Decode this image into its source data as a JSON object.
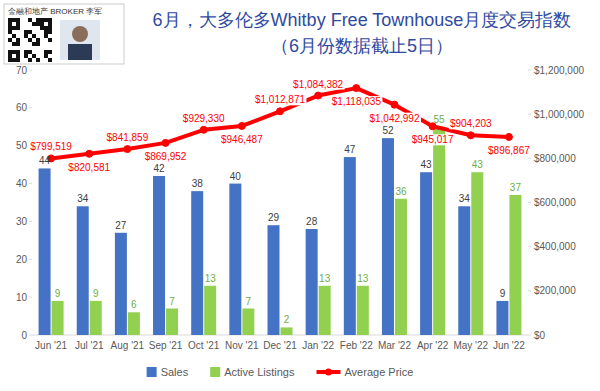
{
  "chart_data": {
    "type": "bar",
    "title": "6月，大多伦多Whitby Free Townhouse月度交易指数",
    "subtitle": "（6月份数据截止5日）",
    "annotations": [
      "金融和地产 BROKER 李军"
    ],
    "categories": [
      "Jun '21",
      "Jul '21",
      "Aug '21",
      "Sep '21",
      "Oct '21",
      "Nov '21",
      "Dec '21",
      "Jan '22",
      "Feb '22",
      "Mar '22",
      "Apr '22",
      "May '22",
      "Jun '22"
    ],
    "series": [
      {
        "name": "Sales",
        "type": "bar",
        "color": "#4472c4",
        "values": [
          44,
          34,
          27,
          42,
          38,
          40,
          29,
          28,
          47,
          52,
          43,
          34,
          9
        ]
      },
      {
        "name": "Active Listings",
        "type": "bar",
        "color": "#92d050",
        "values": [
          9,
          9,
          6,
          7,
          13,
          7,
          2,
          13,
          13,
          36,
          55,
          43,
          37
        ]
      },
      {
        "name": "Average Price",
        "type": "line",
        "color": "#ff0000",
        "axis": "y2",
        "marker": "circle",
        "values": [
          799519,
          820581,
          841859,
          869952,
          929330,
          946487,
          1012871,
          1084382,
          1118035,
          1042992,
          945017,
          904203,
          896867
        ],
        "value_labels": [
          "$799,519",
          "$820,581",
          "$841,859",
          "$869,952",
          "$929,330",
          "$946,487",
          "$1,012,871",
          "$1,084,382",
          "$1,118,035",
          "$1,042,992",
          "$945,017",
          "$904,203",
          "$896,867"
        ]
      }
    ],
    "ylim": [
      0,
      70
    ],
    "yticks": [
      0,
      10,
      20,
      30,
      40,
      50,
      60,
      70
    ],
    "y2lim": [
      0,
      1200000
    ],
    "y2ticks": [
      {
        "value": 0,
        "label": "$0"
      },
      {
        "value": 200000,
        "label": "$200,000"
      },
      {
        "value": 400000,
        "label": "$400,000"
      },
      {
        "value": 600000,
        "label": "$600,000"
      },
      {
        "value": 800000,
        "label": "$800,000"
      },
      {
        "value": 1000000,
        "label": "$1,000,000"
      },
      {
        "value": 1200000,
        "label": "$1,200,000"
      }
    ],
    "data_labels": true,
    "grid": false,
    "legend": "bottom"
  }
}
